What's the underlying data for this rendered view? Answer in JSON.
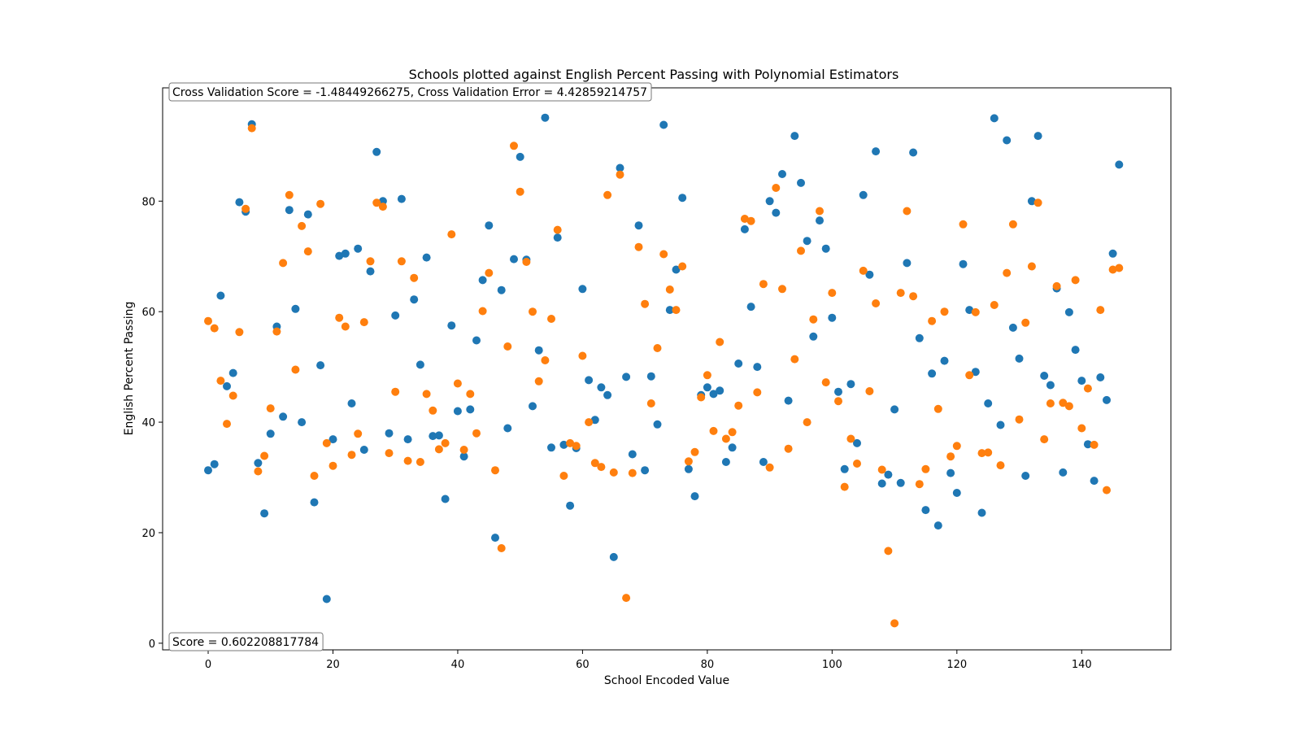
{
  "chart_data": {
    "type": "scatter",
    "title": "Schools plotted against English Percent Passing with Polynomial Estimators",
    "xlabel": "School Encoded Value",
    "ylabel": "English Percent Passing",
    "xlim": [
      -7.3,
      154.3
    ],
    "ylim": [
      -1.2,
      100.5
    ],
    "xticks": [
      0,
      20,
      40,
      60,
      80,
      100,
      120,
      140
    ],
    "yticks": [
      0,
      20,
      40,
      60,
      80
    ],
    "grid": false,
    "legend": "none",
    "annotations": [
      {
        "text": "Cross Validation Score = -1.48449266275, Cross Validation Error = 4.42859214757",
        "placement": "top-left"
      },
      {
        "text": "Score = 0.602208817784",
        "placement": "bottom-left"
      }
    ],
    "series": [
      {
        "color": "#1f77b4",
        "x": [
          0,
          1,
          2,
          3,
          4,
          5,
          6,
          7,
          8,
          9,
          10,
          11,
          12,
          13,
          14,
          15,
          16,
          17,
          18,
          19,
          20,
          21,
          22,
          23,
          24,
          25,
          26,
          27,
          28,
          29,
          30,
          31,
          32,
          33,
          34,
          35,
          36,
          37,
          38,
          39,
          40,
          41,
          42,
          43,
          44,
          45,
          46,
          47,
          48,
          49,
          50,
          51,
          52,
          53,
          54,
          55,
          56,
          57,
          58,
          59,
          60,
          61,
          62,
          63,
          64,
          65,
          66,
          67,
          68,
          69,
          70,
          71,
          72,
          73,
          74,
          75,
          76,
          77,
          78,
          79,
          80,
          81,
          82,
          83,
          84,
          85,
          86,
          87,
          88,
          89,
          90,
          91,
          92,
          93,
          94,
          95,
          96,
          97,
          98,
          99,
          100,
          101,
          102,
          103,
          104,
          105,
          106,
          107,
          108,
          109,
          110,
          111,
          112,
          113,
          114,
          115,
          116,
          117,
          118,
          119,
          120,
          121,
          122,
          123,
          124,
          125,
          126,
          127,
          128,
          129,
          130,
          131,
          132,
          133,
          134,
          135,
          136,
          137,
          138,
          139,
          140,
          141,
          142,
          143,
          144,
          145,
          146
        ],
        "y": [
          31.3,
          32.4,
          62.9,
          46.5,
          48.9,
          79.8,
          78.1,
          93.9,
          32.6,
          23.5,
          37.9,
          57.3,
          41.0,
          78.4,
          60.5,
          40.0,
          77.6,
          25.5,
          50.3,
          8.0,
          36.9,
          70.1,
          70.5,
          43.4,
          71.4,
          35.0,
          67.3,
          88.9,
          80.0,
          38.0,
          59.3,
          80.4,
          36.9,
          62.2,
          50.4,
          69.8,
          37.5,
          37.6,
          26.1,
          57.5,
          42.0,
          33.8,
          42.3,
          54.8,
          65.7,
          75.6,
          19.1,
          63.9,
          38.9,
          69.5,
          88.0,
          69.4,
          42.9,
          53.0,
          95.1,
          35.4,
          73.4,
          35.9,
          24.9,
          35.3,
          64.1,
          47.6,
          40.4,
          46.3,
          44.9,
          15.6,
          86.0,
          48.2,
          34.2,
          75.6,
          31.3,
          48.3,
          39.6,
          93.8,
          60.3,
          67.6,
          80.6,
          31.5,
          26.6,
          44.9,
          46.3,
          45.1,
          45.7,
          32.8,
          35.4,
          50.6,
          74.9,
          60.9,
          50.0,
          32.8,
          80.0,
          77.9,
          84.9,
          43.9,
          91.8,
          83.3,
          72.8,
          55.5,
          76.5,
          71.4,
          58.9,
          45.5,
          31.5,
          46.9,
          36.2,
          81.1,
          66.7,
          89.0,
          28.9,
          30.5,
          42.3,
          29.0,
          68.8,
          88.8,
          55.2,
          24.1,
          48.8,
          21.3,
          51.1,
          30.8,
          27.2,
          68.6,
          60.3,
          49.1,
          23.6,
          43.4,
          95.0,
          39.5,
          91.0,
          57.1,
          51.5,
          30.3,
          80.0,
          91.8,
          48.4,
          46.7,
          64.2,
          30.9,
          59.9,
          53.1,
          47.5,
          36.0,
          29.4,
          48.1,
          44.0,
          70.5,
          86.6
        ]
      },
      {
        "color": "#ff7f0e",
        "x": [
          0,
          1,
          2,
          3,
          4,
          5,
          6,
          7,
          8,
          9,
          10,
          11,
          12,
          13,
          14,
          15,
          16,
          17,
          18,
          19,
          20,
          21,
          22,
          23,
          24,
          25,
          26,
          27,
          28,
          29,
          30,
          31,
          32,
          33,
          34,
          35,
          36,
          37,
          38,
          39,
          40,
          41,
          42,
          43,
          44,
          45,
          46,
          47,
          48,
          49,
          50,
          51,
          52,
          53,
          54,
          55,
          56,
          57,
          58,
          59,
          60,
          61,
          62,
          63,
          64,
          65,
          66,
          67,
          68,
          69,
          70,
          71,
          72,
          73,
          74,
          75,
          76,
          77,
          78,
          79,
          80,
          81,
          82,
          83,
          84,
          85,
          86,
          87,
          88,
          89,
          90,
          91,
          92,
          93,
          94,
          95,
          96,
          97,
          98,
          99,
          100,
          101,
          102,
          103,
          104,
          105,
          106,
          107,
          108,
          109,
          110,
          111,
          112,
          113,
          114,
          115,
          116,
          117,
          118,
          119,
          120,
          121,
          122,
          123,
          124,
          125,
          126,
          127,
          128,
          129,
          130,
          131,
          132,
          133,
          134,
          135,
          136,
          137,
          138,
          139,
          140,
          141,
          142,
          143,
          144,
          145,
          146
        ],
        "y": [
          58.3,
          57.0,
          47.5,
          39.7,
          44.8,
          56.3,
          78.6,
          93.2,
          31.1,
          33.9,
          42.5,
          56.4,
          68.8,
          81.1,
          49.5,
          75.5,
          70.9,
          30.3,
          79.5,
          36.2,
          32.1,
          58.9,
          57.3,
          34.1,
          37.9,
          58.1,
          69.1,
          79.7,
          79.0,
          34.4,
          45.5,
          69.1,
          33.0,
          66.1,
          32.8,
          45.1,
          42.1,
          35.1,
          36.2,
          74.0,
          47.0,
          35.0,
          45.1,
          38.0,
          60.1,
          67.0,
          31.3,
          17.2,
          53.7,
          90.0,
          81.7,
          69.0,
          60.0,
          47.4,
          51.2,
          58.7,
          74.8,
          30.3,
          36.2,
          35.7,
          52.0,
          40.0,
          32.6,
          31.9,
          81.1,
          30.9,
          84.8,
          8.2,
          30.8,
          71.7,
          61.4,
          43.4,
          53.4,
          70.4,
          64.0,
          60.3,
          68.2,
          32.9,
          34.6,
          44.5,
          48.5,
          38.4,
          54.5,
          37.0,
          38.2,
          43.0,
          76.8,
          76.4,
          45.4,
          65.0,
          31.8,
          82.4,
          64.1,
          35.2,
          51.4,
          71.0,
          40.0,
          58.6,
          78.2,
          47.2,
          63.4,
          43.8,
          28.3,
          37.0,
          32.5,
          67.4,
          45.6,
          61.5,
          31.4,
          16.7,
          3.6,
          63.4,
          78.2,
          62.8,
          28.8,
          31.5,
          58.3,
          42.4,
          60.0,
          33.8,
          35.7,
          75.8,
          48.5,
          59.9,
          34.4,
          34.5,
          61.2,
          32.2,
          67.0,
          75.8,
          40.5,
          58.0,
          68.2,
          79.7,
          36.9,
          43.4,
          64.6,
          43.5,
          42.9,
          65.7,
          38.9,
          46.1,
          35.9,
          60.3,
          27.7,
          67.6,
          67.9
        ]
      }
    ]
  }
}
